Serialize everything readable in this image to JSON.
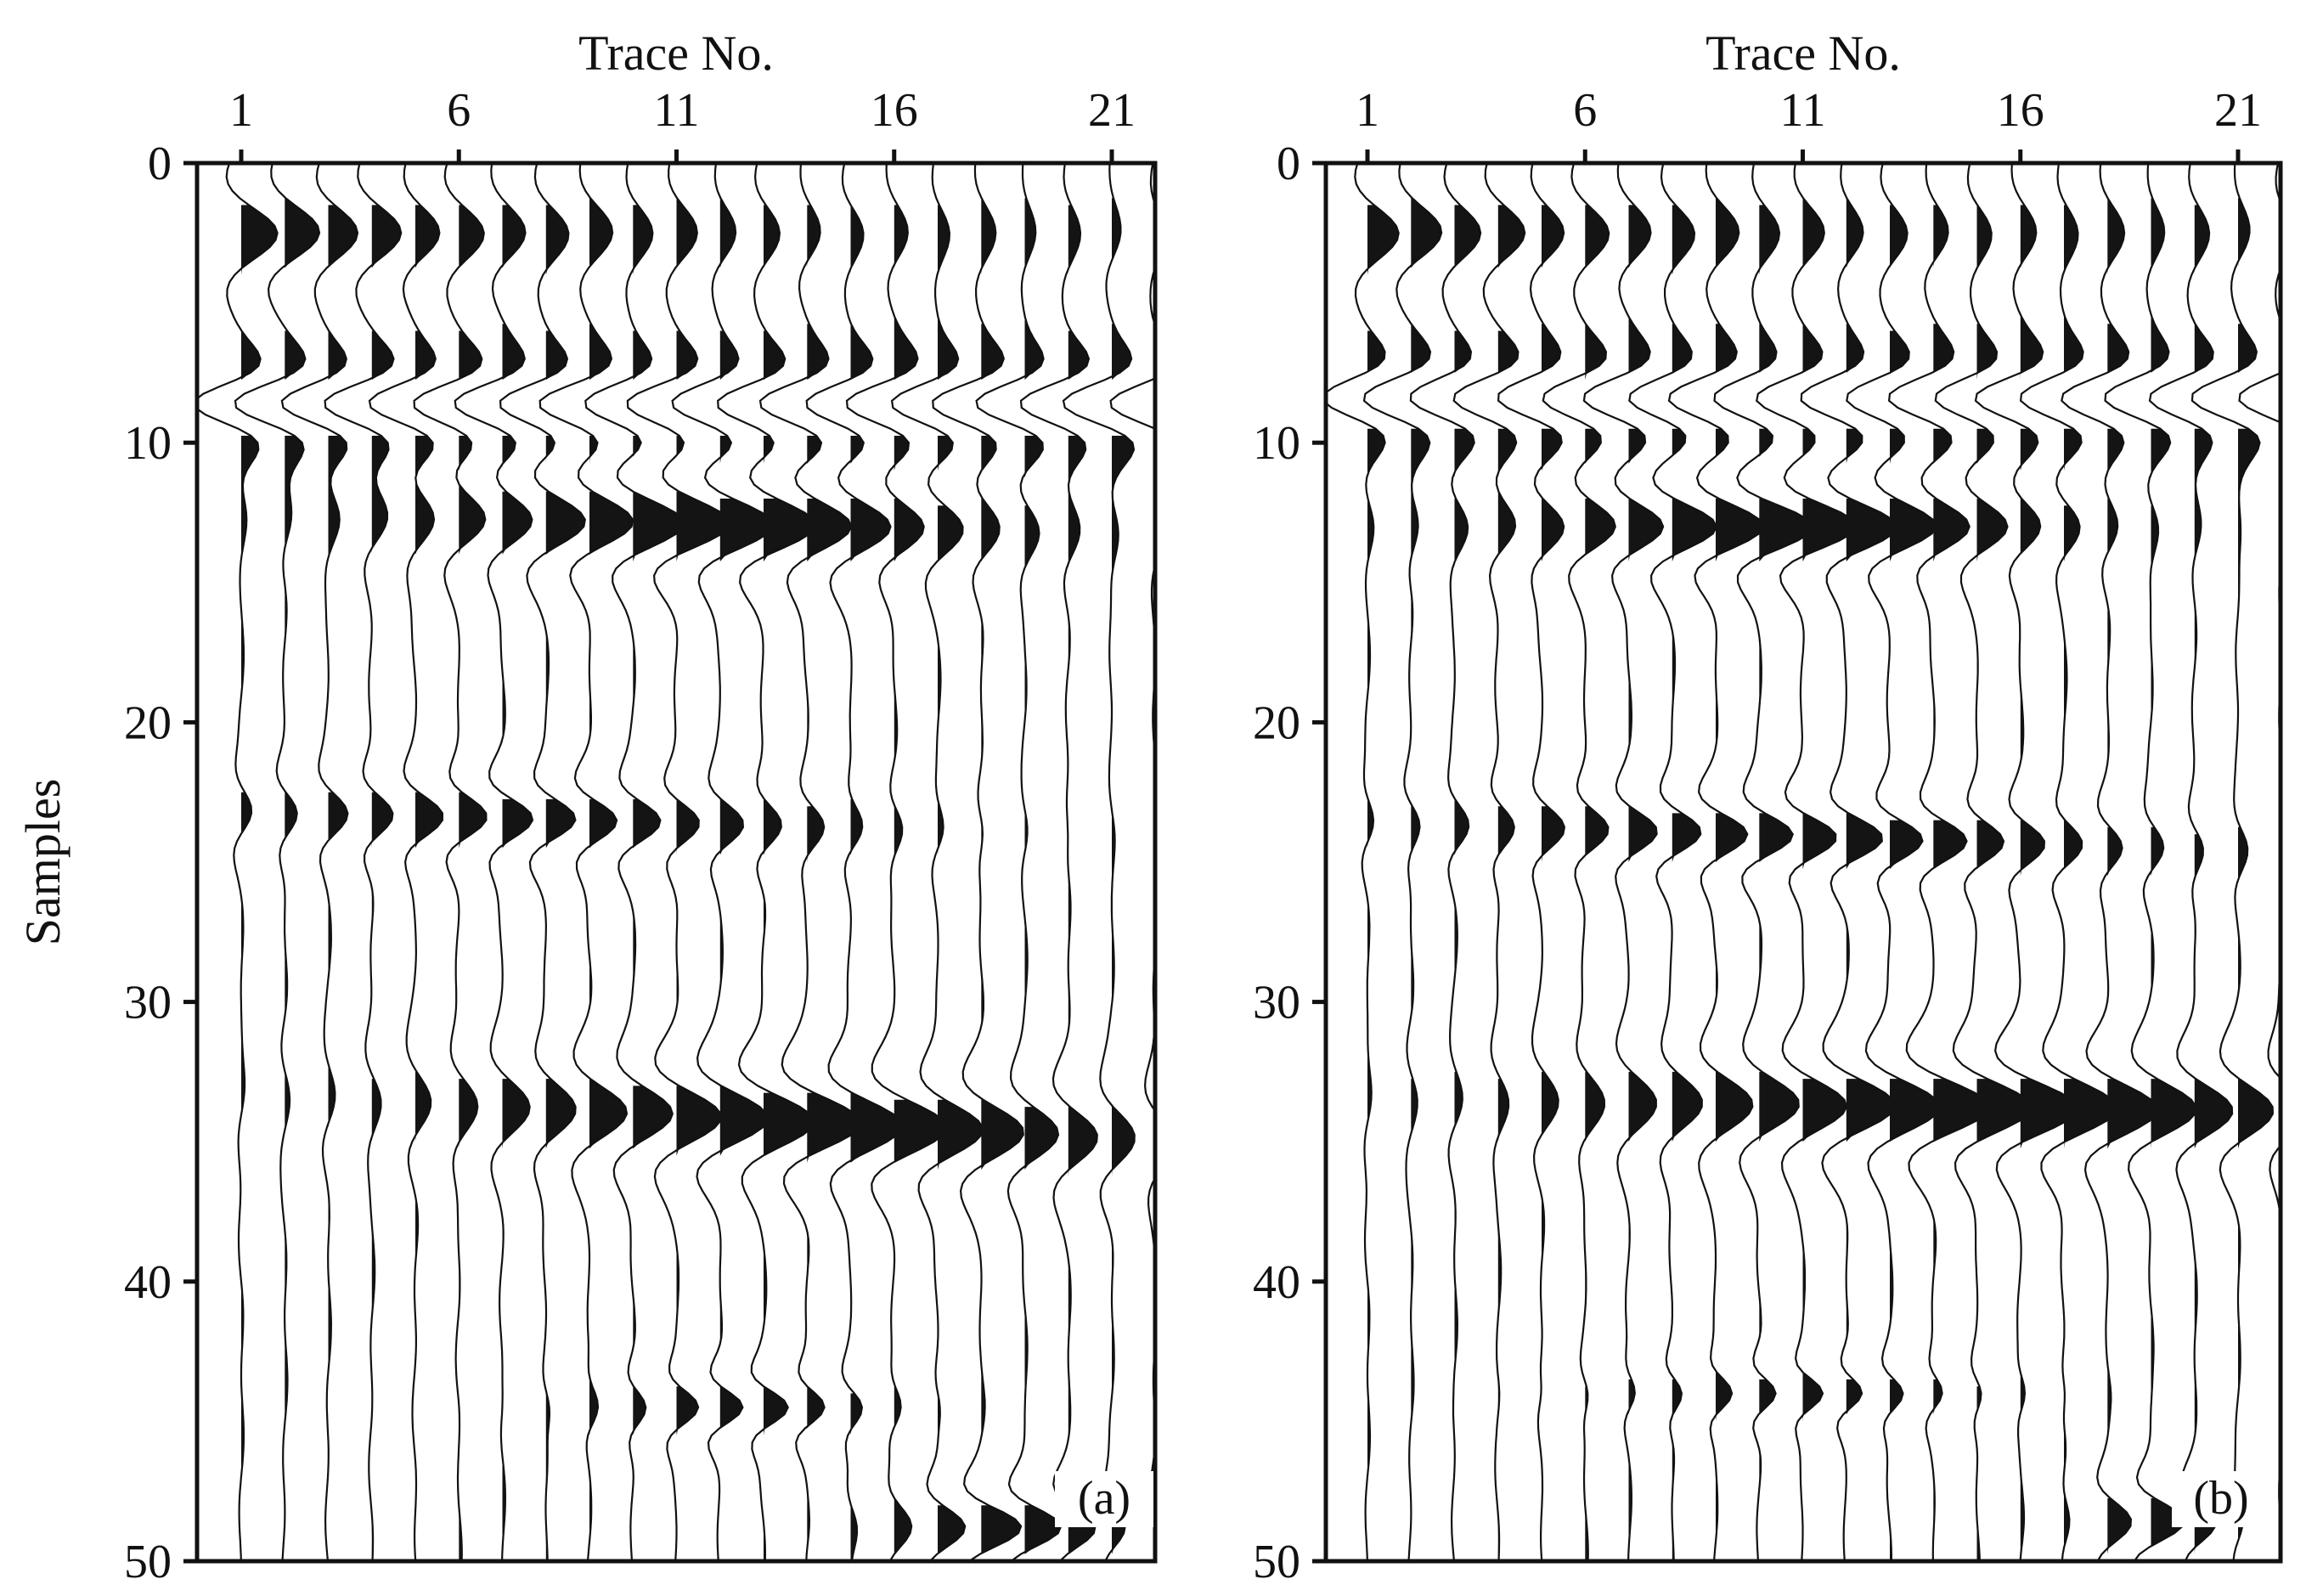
{
  "chart_data": [
    {
      "type": "seismic-wiggle",
      "panel": "(a)",
      "xlabel": "Trace No.",
      "ylabel": "Samples",
      "x_ticks": [
        "1",
        "6",
        "11",
        "16",
        "21"
      ],
      "y_ticks": [
        "0",
        "10",
        "20",
        "30",
        "40",
        "50"
      ],
      "traces": 22,
      "samples": 51,
      "ylim": [
        0,
        50
      ],
      "events": [
        {
          "t0": 2.5,
          "dip": 0.0,
          "amp": 0.7,
          "width": 1.7,
          "decay": 0.065
        },
        {
          "t0": 8.6,
          "dip": 0.0,
          "amp": -0.95,
          "width": 1.3,
          "decay": 0.0
        },
        {
          "t0": 12.6,
          "dip": 0.03,
          "amp": 1.05,
          "width": 1.6,
          "center": 11.5,
          "spread": 6.5
        },
        {
          "t0": 23.2,
          "dip": 0.04,
          "amp": 0.6,
          "width": 1.3,
          "center": 8.0,
          "spread": 7.0
        },
        {
          "t0": 33.3,
          "dip": 0.08,
          "amp": 1.05,
          "width": 1.7,
          "center": 14.0,
          "spread": 8.0
        },
        {
          "t0": 44.5,
          "dip": 0.0,
          "amp": 0.5,
          "width": 1.1,
          "center": 12.5,
          "spread": 3.0
        },
        {
          "t0": 48.8,
          "dip": 0.0,
          "amp": 0.8,
          "width": 1.3,
          "center": 18.5,
          "spread": 2.5
        }
      ]
    },
    {
      "type": "seismic-wiggle",
      "panel": "(b)",
      "xlabel": "Trace No.",
      "ylabel": "",
      "x_ticks": [
        "1",
        "6",
        "11",
        "16",
        "21"
      ],
      "y_ticks": [
        "0",
        "10",
        "20",
        "30",
        "40",
        "50"
      ],
      "traces": 22,
      "samples": 51,
      "ylim": [
        0,
        50
      ],
      "events": [
        {
          "t0": 2.5,
          "dip": 0.0,
          "amp": 0.6,
          "width": 1.7,
          "decay": 0.045
        },
        {
          "t0": 8.4,
          "dip": 0.0,
          "amp": -0.9,
          "width": 1.3,
          "decay": 0.0
        },
        {
          "t0": 13.0,
          "dip": 0.0,
          "amp": 1.05,
          "width": 1.5,
          "center": 10.5,
          "spread": 6.0
        },
        {
          "t0": 23.6,
          "dip": 0.05,
          "amp": 0.7,
          "width": 1.3,
          "center": 11.0,
          "spread": 8.0
        },
        {
          "t0": 33.5,
          "dip": 0.02,
          "amp": 1.1,
          "width": 1.7,
          "center": 15.0,
          "spread": 9.0
        },
        {
          "t0": 44.0,
          "dip": 0.0,
          "amp": 0.35,
          "width": 1.0,
          "center": 11.0,
          "spread": 4.0
        },
        {
          "t0": 48.6,
          "dip": 0.0,
          "amp": 0.7,
          "width": 1.3,
          "center": 19.0,
          "spread": 1.5
        }
      ]
    }
  ]
}
